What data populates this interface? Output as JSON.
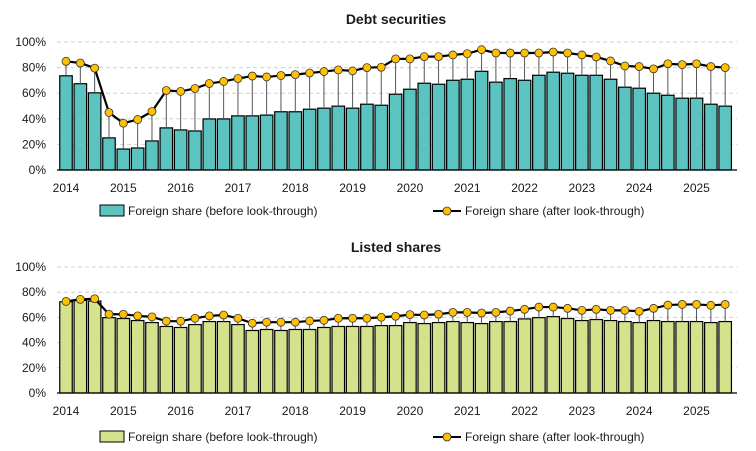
{
  "chart_data": [
    {
      "type": "bar+line",
      "title": "Debt securities",
      "ylim": [
        0,
        100
      ],
      "y_ticks": [
        "0%",
        "20%",
        "40%",
        "60%",
        "80%",
        "100%"
      ],
      "x_tick_labels": [
        "2014",
        "2015",
        "2016",
        "2017",
        "2018",
        "2019",
        "2020",
        "2021",
        "2022",
        "2023",
        "2024",
        "2025"
      ],
      "x_start": "2014Q1",
      "x_end": "2025Q3",
      "frequency": "quarterly",
      "grid": "horizontal dashed",
      "legend": "bottom",
      "series": [
        {
          "name": "Foreign share (before look-through)",
          "kind": "bar",
          "color": "#5BC4C0",
          "values": [
            73.6,
            67.4,
            60.3,
            25.1,
            16.4,
            17.2,
            22.7,
            32.9,
            31.3,
            30.5,
            39.9,
            39.9,
            42.3,
            42.3,
            42.9,
            45.5,
            45.5,
            47.5,
            48.3,
            49.9,
            48.3,
            51.4,
            50.6,
            59.2,
            63.1,
            67.8,
            67.0,
            70.1,
            70.9,
            77.1,
            68.6,
            71.4,
            70.1,
            74.0,
            76.4,
            75.6,
            74.0,
            74.0,
            70.9,
            64.7,
            63.9,
            60.0,
            58.4,
            56.1,
            56.1,
            51.4,
            49.9
          ]
        },
        {
          "name": "Foreign share (after look-through)",
          "kind": "line",
          "color": "#000000",
          "marker_color": "#FFC000",
          "values": [
            84.9,
            83.6,
            79.6,
            44.9,
            36.6,
            39.4,
            45.7,
            62.1,
            61.4,
            63.7,
            67.6,
            69.2,
            71.5,
            73.4,
            72.7,
            73.8,
            74.5,
            75.8,
            76.9,
            78.2,
            77.4,
            80.0,
            80.3,
            86.8,
            86.8,
            88.6,
            88.6,
            89.9,
            90.9,
            94.0,
            91.4,
            91.4,
            91.4,
            91.4,
            92.2,
            91.4,
            89.9,
            88.3,
            85.2,
            81.3,
            80.8,
            79.0,
            83.0,
            82.3,
            83.0,
            80.8,
            80.0
          ]
        }
      ]
    },
    {
      "type": "bar+line",
      "title": "Listed shares",
      "ylim": [
        0,
        100
      ],
      "y_ticks": [
        "0%",
        "20%",
        "40%",
        "60%",
        "80%",
        "100%"
      ],
      "x_tick_labels": [
        "2014",
        "2015",
        "2016",
        "2017",
        "2018",
        "2019",
        "2020",
        "2021",
        "2022",
        "2023",
        "2024",
        "2025"
      ],
      "x_start": "2014Q1",
      "x_end": "2025Q3",
      "frequency": "quarterly",
      "grid": "horizontal dashed",
      "legend": "bottom",
      "series": [
        {
          "name": "Foreign share (before look-through)",
          "kind": "bar",
          "color": "#D4E28C",
          "values": [
            72.4,
            73.5,
            73.0,
            59.8,
            59.1,
            57.5,
            55.9,
            52.8,
            52.0,
            54.3,
            56.7,
            56.7,
            54.3,
            49.6,
            50.4,
            49.6,
            50.4,
            50.4,
            52.0,
            52.8,
            52.8,
            52.8,
            53.5,
            53.5,
            55.9,
            55.1,
            55.9,
            56.7,
            55.9,
            55.1,
            56.7,
            56.7,
            58.8,
            59.8,
            60.6,
            59.1,
            57.5,
            58.3,
            57.5,
            56.7,
            55.9,
            57.5,
            56.7,
            56.7,
            56.7,
            55.9,
            56.7
          ]
        },
        {
          "name": "Foreign share (after look-through)",
          "kind": "line",
          "color": "#000000",
          "marker_color": "#FFC000",
          "values": [
            72.7,
            74.3,
            74.8,
            62.5,
            62.5,
            61.2,
            60.4,
            57.0,
            57.0,
            59.3,
            61.2,
            61.9,
            59.3,
            55.4,
            56.2,
            56.2,
            56.2,
            57.2,
            57.7,
            59.3,
            59.3,
            59.3,
            60.1,
            60.9,
            62.2,
            61.9,
            62.5,
            64.0,
            64.0,
            63.5,
            64.0,
            65.1,
            66.4,
            68.2,
            68.2,
            67.2,
            65.6,
            66.4,
            65.6,
            65.6,
            64.8,
            67.2,
            69.8,
            70.3,
            70.3,
            69.6,
            70.3
          ]
        }
      ]
    }
  ]
}
